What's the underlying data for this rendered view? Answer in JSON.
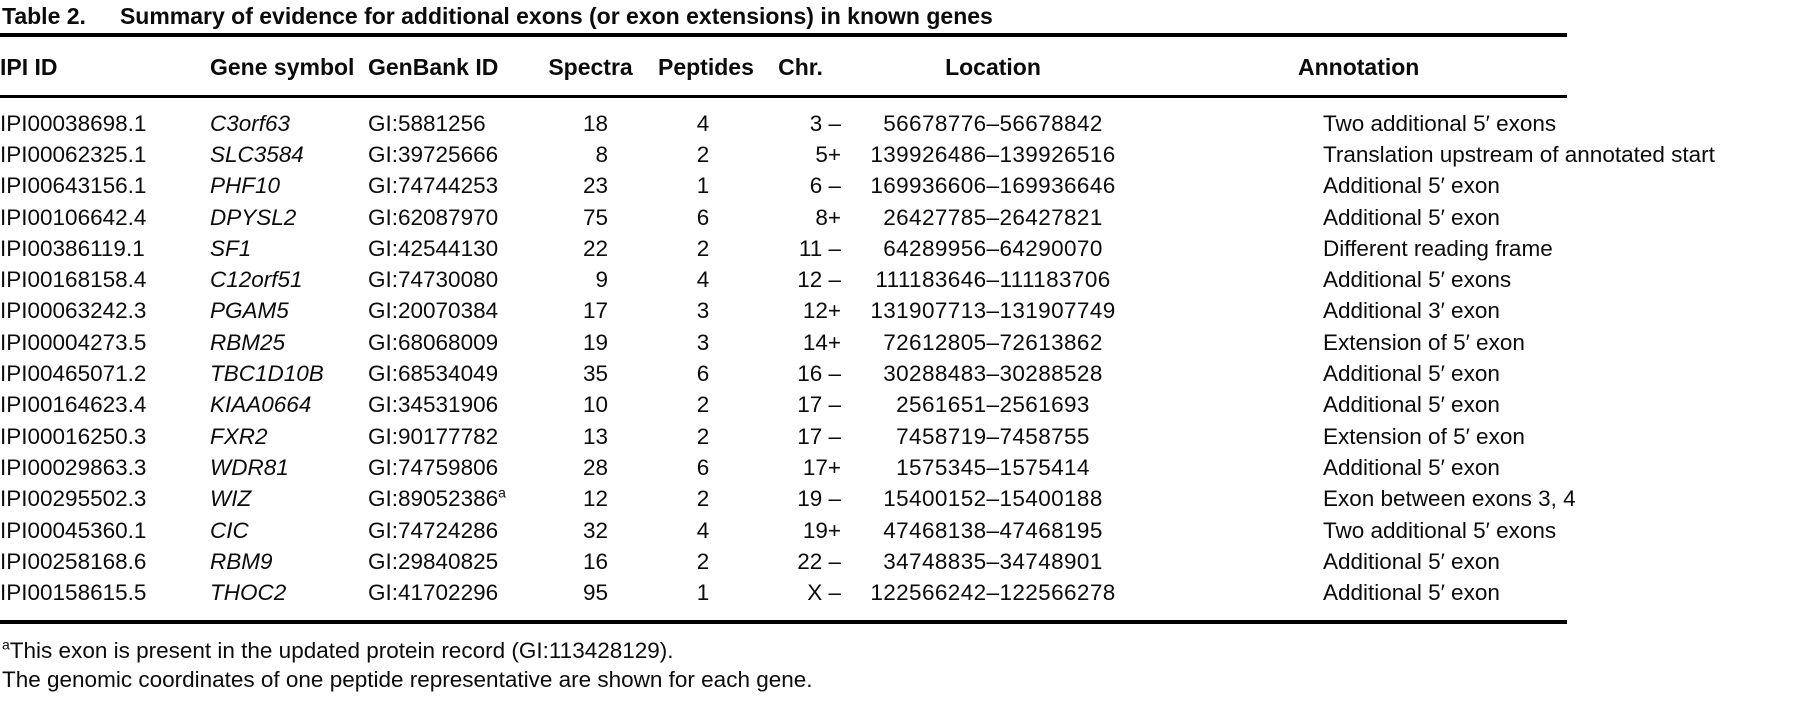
{
  "title": {
    "label": "Table 2.",
    "text": "Summary of evidence for additional exons (or exon extensions) in known genes"
  },
  "table": {
    "columns": [
      "IPI ID",
      "Gene symbol",
      "GenBank ID",
      "Spectra",
      "Peptides",
      "Chr.",
      "Location",
      "Annotation"
    ],
    "rows": [
      {
        "ipi": "IPI00038698.1",
        "gene": "C3orf63",
        "genbank": "GI:5881256",
        "genbank_sup": "",
        "spectra": "18",
        "peptides": "4",
        "chr": "3 –",
        "location": "56678776–56678842",
        "annotation": "Two additional 5′ exons"
      },
      {
        "ipi": "IPI00062325.1",
        "gene": "SLC3584",
        "genbank": "GI:39725666",
        "genbank_sup": "",
        "spectra": "8",
        "peptides": "2",
        "chr": "5+",
        "location": "139926486–139926516",
        "annotation": "Translation upstream of annotated start"
      },
      {
        "ipi": "IPI00643156.1",
        "gene": "PHF10",
        "genbank": "GI:74744253",
        "genbank_sup": "",
        "spectra": "23",
        "peptides": "1",
        "chr": "6 –",
        "location": "169936606–169936646",
        "annotation": "Additional 5′ exon"
      },
      {
        "ipi": "IPI00106642.4",
        "gene": "DPYSL2",
        "genbank": "GI:62087970",
        "genbank_sup": "",
        "spectra": "75",
        "peptides": "6",
        "chr": "8+",
        "location": "26427785–26427821",
        "annotation": "Additional 5′ exon"
      },
      {
        "ipi": "IPI00386119.1",
        "gene": "SF1",
        "genbank": "GI:42544130",
        "genbank_sup": "",
        "spectra": "22",
        "peptides": "2",
        "chr": "11 –",
        "location": "64289956–64290070",
        "annotation": "Different reading frame"
      },
      {
        "ipi": "IPI00168158.4",
        "gene": "C12orf51",
        "genbank": "GI:74730080",
        "genbank_sup": "",
        "spectra": "9",
        "peptides": "4",
        "chr": "12 –",
        "location": "111183646–111183706",
        "annotation": "Additional 5′ exons"
      },
      {
        "ipi": "IPI00063242.3",
        "gene": "PGAM5",
        "genbank": "GI:20070384",
        "genbank_sup": "",
        "spectra": "17",
        "peptides": "3",
        "chr": "12+",
        "location": "131907713–131907749",
        "annotation": "Additional 3′ exon"
      },
      {
        "ipi": "IPI00004273.5",
        "gene": "RBM25",
        "genbank": "GI:68068009",
        "genbank_sup": "",
        "spectra": "19",
        "peptides": "3",
        "chr": "14+",
        "location": "72612805–72613862",
        "annotation": "Extension of 5′ exon"
      },
      {
        "ipi": "IPI00465071.2",
        "gene": "TBC1D10B",
        "genbank": "GI:68534049",
        "genbank_sup": "",
        "spectra": "35",
        "peptides": "6",
        "chr": "16 –",
        "location": "30288483–30288528",
        "annotation": "Additional 5′ exon"
      },
      {
        "ipi": "IPI00164623.4",
        "gene": "KIAA0664",
        "genbank": "GI:34531906",
        "genbank_sup": "",
        "spectra": "10",
        "peptides": "2",
        "chr": "17 –",
        "location": "2561651–2561693",
        "annotation": "Additional 5′ exon"
      },
      {
        "ipi": "IPI00016250.3",
        "gene": "FXR2",
        "genbank": "GI:90177782",
        "genbank_sup": "",
        "spectra": "13",
        "peptides": "2",
        "chr": "17 –",
        "location": "7458719–7458755",
        "annotation": "Extension of 5′ exon"
      },
      {
        "ipi": "IPI00029863.3",
        "gene": "WDR81",
        "genbank": "GI:74759806",
        "genbank_sup": "",
        "spectra": "28",
        "peptides": "6",
        "chr": "17+",
        "location": "1575345–1575414",
        "annotation": "Additional 5′ exon"
      },
      {
        "ipi": "IPI00295502.3",
        "gene": "WIZ",
        "genbank": "GI:89052386",
        "genbank_sup": "a",
        "spectra": "12",
        "peptides": "2",
        "chr": "19 –",
        "location": "15400152–15400188",
        "annotation": "Exon between exons 3, 4"
      },
      {
        "ipi": "IPI00045360.1",
        "gene": "CIC",
        "genbank": "GI:74724286",
        "genbank_sup": "",
        "spectra": "32",
        "peptides": "4",
        "chr": "19+",
        "location": "47468138–47468195",
        "annotation": "Two additional 5′ exons"
      },
      {
        "ipi": "IPI00258168.6",
        "gene": "RBM9",
        "genbank": "GI:29840825",
        "genbank_sup": "",
        "spectra": "16",
        "peptides": "2",
        "chr": "22 –",
        "location": "34748835–34748901",
        "annotation": "Additional 5′ exon"
      },
      {
        "ipi": "IPI00158615.5",
        "gene": "THOC2",
        "genbank": "GI:41702296",
        "genbank_sup": "",
        "spectra": "95",
        "peptides": "1",
        "chr": "X –",
        "location": "122566242–122566278",
        "annotation": "Additional 5′ exon"
      }
    ]
  },
  "footnotes": {
    "a_sup": "a",
    "a_text": "This exon is present in the updated protein record (GI:113428129).",
    "note": "The genomic coordinates of one peptide representative are shown for each gene."
  }
}
